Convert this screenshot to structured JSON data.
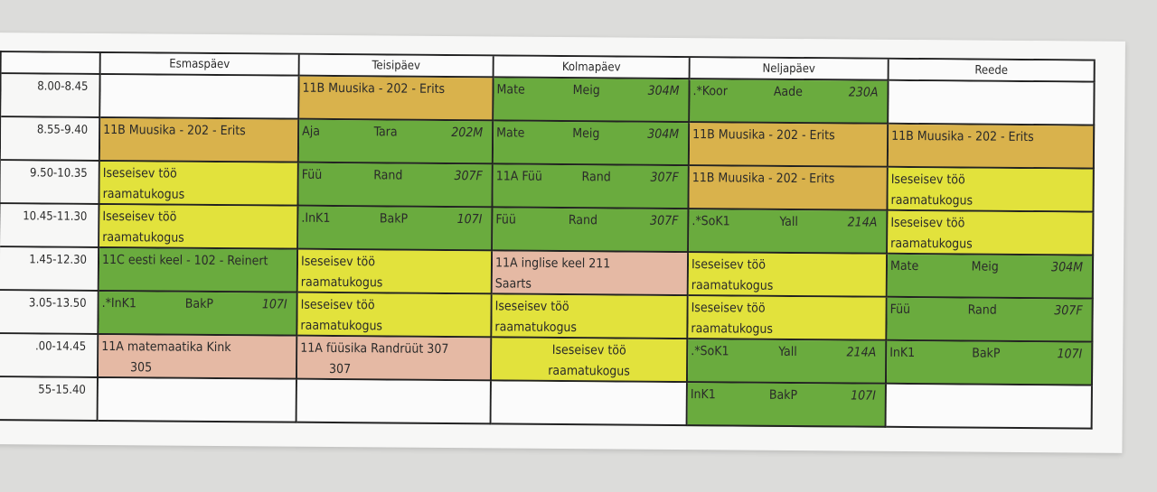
{
  "colors": {
    "green": "#6aab3e",
    "yellow": "#e2e23c",
    "orange": "#d9b24c",
    "pink": "#e5b9a4",
    "white": "#fbfbfb"
  },
  "days": [
    "",
    "Esmaspäev",
    "Teisipäev",
    "Kolmapäev",
    "Neljapäev",
    "Reede"
  ],
  "rows": [
    {
      "time": "8.00-8.45",
      "cells": [
        {
          "color": "white",
          "lines": []
        },
        {
          "color": "orange",
          "lines": [
            "11B Muusika - 202 - Erits"
          ]
        },
        {
          "color": "green",
          "triple": [
            "Mate",
            "Meig",
            "304M"
          ]
        },
        {
          "color": "green",
          "triple": [
            ".*Koor",
            "Aade",
            "230A"
          ]
        },
        {
          "color": "white",
          "lines": []
        }
      ]
    },
    {
      "time": "8.55-9.40",
      "cells": [
        {
          "color": "orange",
          "lines": [
            "11B Muusika - 202 - Erits"
          ]
        },
        {
          "color": "green",
          "triple": [
            "Aja",
            "Tara",
            "202M"
          ]
        },
        {
          "color": "green",
          "triple": [
            "Mate",
            "Meig",
            "304M"
          ]
        },
        {
          "color": "orange",
          "lines": [
            "11B Muusika - 202 - Erits"
          ]
        },
        {
          "color": "orange",
          "lines": [
            "11B Muusika - 202 - Erits"
          ]
        }
      ]
    },
    {
      "time": "9.50-10.35",
      "cells": [
        {
          "color": "yellow",
          "lines": [
            "Iseseisev töö",
            "raamatukogus"
          ]
        },
        {
          "color": "green",
          "triple": [
            "Füü",
            "Rand",
            "307F"
          ]
        },
        {
          "color": "green",
          "triple": [
            "11A Füü",
            "Rand",
            "307F"
          ]
        },
        {
          "color": "orange",
          "lines": [
            "11B Muusika - 202 - Erits"
          ]
        },
        {
          "color": "yellow",
          "lines": [
            "Iseseisev töö",
            "raamatukogus"
          ]
        }
      ]
    },
    {
      "time": "10.45-11.30",
      "cells": [
        {
          "color": "yellow",
          "lines": [
            "Iseseisev töö",
            "raamatukogus"
          ]
        },
        {
          "color": "green",
          "triple": [
            ".InK1",
            "BakP",
            "107I"
          ]
        },
        {
          "color": "green",
          "triple": [
            "Füü",
            "Rand",
            "307F"
          ]
        },
        {
          "color": "green",
          "triple": [
            ".*SoK1",
            "Yall",
            "214A"
          ]
        },
        {
          "color": "yellow",
          "lines": [
            "Iseseisev töö",
            "raamatukogus"
          ]
        }
      ]
    },
    {
      "time": "1.45-12.30",
      "cells": [
        {
          "color": "green",
          "lines": [
            "11C eesti keel - 102 - Reinert"
          ]
        },
        {
          "color": "yellow",
          "lines": [
            "Iseseisev töö",
            "raamatukogus"
          ]
        },
        {
          "color": "pink",
          "lines": [
            "11A inglise keel 211",
            "Saarts"
          ]
        },
        {
          "color": "yellow",
          "lines": [
            "Iseseisev töö",
            "raamatukogus"
          ]
        },
        {
          "color": "green",
          "triple": [
            "Mate",
            "Meig",
            "304M"
          ]
        }
      ]
    },
    {
      "time": "3.05-13.50",
      "cells": [
        {
          "color": "green",
          "triple": [
            ".*InK1",
            "BakP",
            "107I"
          ]
        },
        {
          "color": "yellow",
          "lines": [
            "Iseseisev töö",
            "raamatukogus"
          ]
        },
        {
          "color": "yellow",
          "lines": [
            "Iseseisev töö",
            "raamatukogus"
          ]
        },
        {
          "color": "yellow",
          "lines": [
            "Iseseisev töö",
            "raamatukogus"
          ]
        },
        {
          "color": "green",
          "triple": [
            "Füü",
            "Rand",
            "307F"
          ]
        }
      ]
    },
    {
      "time": ".00-14.45",
      "cells": [
        {
          "color": "pink",
          "lines": [
            "11A matemaatika Kink",
            "        305"
          ]
        },
        {
          "color": "pink",
          "lines": [
            "11A füüsika Randrüüt 307",
            "        307"
          ]
        },
        {
          "color": "yellow",
          "center": true,
          "lines": [
            "Iseseisev töö",
            "raamatukogus"
          ]
        },
        {
          "color": "green",
          "triple": [
            ".*SoK1",
            "Yall",
            "214A"
          ]
        },
        {
          "color": "green",
          "triple": [
            "InK1",
            "BakP",
            "107I"
          ]
        }
      ]
    },
    {
      "time": "55-15.40",
      "cells": [
        {
          "color": "white",
          "lines": []
        },
        {
          "color": "white",
          "lines": []
        },
        {
          "color": "white",
          "lines": []
        },
        {
          "color": "green",
          "triple": [
            "InK1",
            "BakP",
            "107I"
          ]
        },
        {
          "color": "white",
          "lines": []
        }
      ]
    }
  ]
}
